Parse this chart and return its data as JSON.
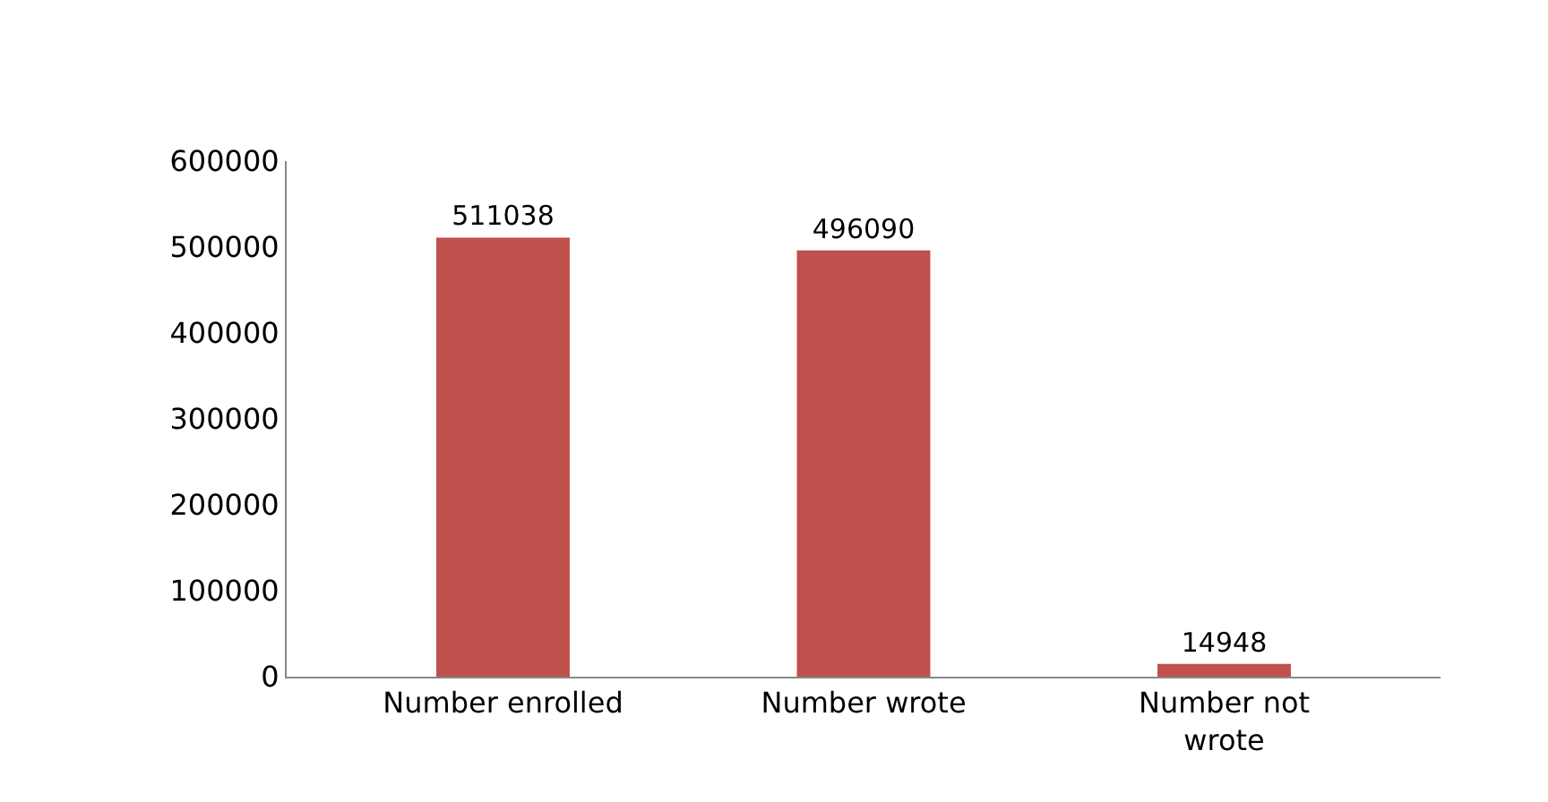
{
  "chart_data": {
    "type": "bar",
    "categories": [
      "Number enrolled",
      "Number wrote",
      "Number not wrote"
    ],
    "values": [
      511038,
      496090,
      14948
    ],
    "color": "#c0504d",
    "ylim": [
      0,
      600000
    ],
    "yticks": [
      0,
      100000,
      200000,
      300000,
      400000,
      500000,
      600000
    ],
    "data_labels": true,
    "grid": false
  }
}
